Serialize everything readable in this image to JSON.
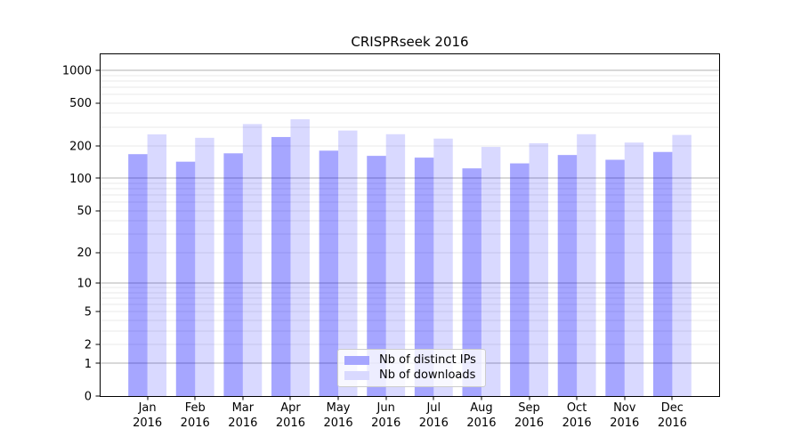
{
  "chart_data": {
    "type": "bar",
    "title": "CRISPRseek 2016",
    "categories": [
      "Jan",
      "Feb",
      "Mar",
      "Apr",
      "May",
      "Jun",
      "Jul",
      "Aug",
      "Sep",
      "Oct",
      "Nov",
      "Dec"
    ],
    "year_label": "2016",
    "series": [
      {
        "name": "Nb of distinct IPs",
        "color": "#0000ff",
        "alpha": 0.35,
        "values": [
          168,
          143,
          171,
          242,
          181,
          162,
          156,
          124,
          138,
          165,
          149,
          176
        ]
      },
      {
        "name": "Nb of downloads",
        "color": "#0000ff",
        "alpha": 0.15,
        "values": [
          256,
          238,
          319,
          353,
          278,
          257,
          234,
          196,
          212,
          257,
          215,
          253
        ]
      }
    ],
    "yscale": "log1p",
    "yticks": [
      0,
      1,
      2,
      5,
      10,
      20,
      50,
      100,
      200,
      500,
      1000
    ],
    "ylim": [
      0,
      1430
    ],
    "xlabel": "",
    "ylabel": "",
    "grid": true,
    "legend_position": "lower-center"
  },
  "colors": {
    "background": "#ffffff",
    "axis": "#000000",
    "text": "#000000",
    "major_grid": "#b0b0b0",
    "minor_grid": "#e8e8e8",
    "legend_border": "#cccccc"
  }
}
